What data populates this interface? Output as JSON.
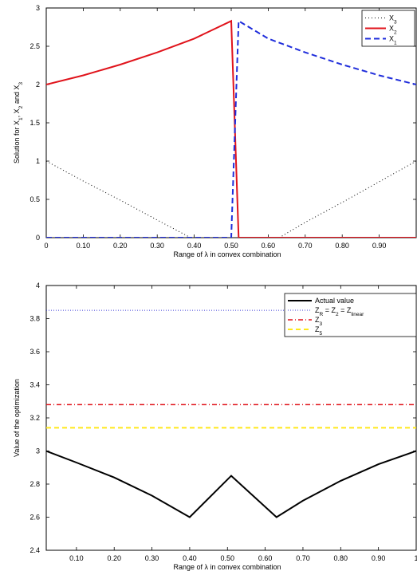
{
  "chart_data": [
    {
      "type": "line",
      "xlabel": "Range of λ in convex combination",
      "ylabel_parts": {
        "a": "Solution for X",
        "a_sub": "1",
        "b": ", X",
        "b_sub": "2",
        "c": " and X",
        "c_sub": "3"
      },
      "xlim": [
        0,
        1
      ],
      "ylim": [
        0,
        3
      ],
      "x_ticks": [
        0,
        0.1,
        0.2,
        0.3,
        0.4,
        0.5,
        0.6,
        0.7,
        0.8,
        0.9
      ],
      "x_tick_labels": [
        "0",
        "0.10",
        "0.20",
        "0.30",
        "0.40",
        "0.50",
        "0.60",
        "0.70",
        "0.80",
        "0.90"
      ],
      "y_ticks": [
        0,
        0.5,
        1,
        1.5,
        2,
        2.5,
        3
      ],
      "y_tick_labels": [
        "0",
        "0.5",
        "1",
        "1.5",
        "2",
        "2.5",
        "3"
      ],
      "legend_position": "top-right",
      "series": [
        {
          "name": "X",
          "sub": "3",
          "color": "#000000",
          "dash": "1,3",
          "width": 1,
          "x": [
            0,
            0.1,
            0.2,
            0.3,
            0.39,
            0.4,
            0.62,
            0.63,
            0.7,
            0.8,
            0.9,
            1.0
          ],
          "y": [
            1.0,
            0.74,
            0.49,
            0.23,
            0.0,
            0.0,
            0.0,
            0.0,
            0.2,
            0.46,
            0.73,
            1.0
          ]
        },
        {
          "name": "X",
          "sub": "2",
          "color": "#e0131b",
          "dash": "",
          "width": 2,
          "x": [
            0,
            0.1,
            0.2,
            0.3,
            0.4,
            0.5,
            0.52,
            0.6,
            0.7,
            0.8,
            0.9,
            1.0
          ],
          "y": [
            2.0,
            2.12,
            2.26,
            2.42,
            2.6,
            2.83,
            0.0,
            0.0,
            0.0,
            0.0,
            0.0,
            0.0
          ]
        },
        {
          "name": "X",
          "sub": "1",
          "color": "#1f2ddb",
          "dash": "7,4",
          "width": 2,
          "x": [
            0,
            0.1,
            0.2,
            0.3,
            0.4,
            0.5,
            0.52,
            0.6,
            0.7,
            0.8,
            0.9,
            1.0
          ],
          "y": [
            0.0,
            0.0,
            0.0,
            0.0,
            0.0,
            0.0,
            2.83,
            2.6,
            2.42,
            2.26,
            2.12,
            2.0
          ]
        }
      ]
    },
    {
      "type": "line",
      "xlabel": "Range of λ in convex combination",
      "ylabel": "Value of the optimization",
      "xlim": [
        0.02,
        1.0
      ],
      "ylim": [
        2.4,
        4.0
      ],
      "x_ticks": [
        0.1,
        0.2,
        0.3,
        0.4,
        0.5,
        0.6,
        0.7,
        0.8,
        0.9,
        1.0
      ],
      "x_tick_labels": [
        "0.10",
        "0.20",
        "0.30",
        "0.40",
        "0.50",
        "0.60",
        "0.70",
        "0.80",
        "0.90",
        "1"
      ],
      "y_ticks": [
        2.4,
        2.6,
        2.8,
        3.0,
        3.2,
        3.4,
        3.6,
        3.8,
        4.0
      ],
      "y_tick_labels": [
        "2.4",
        "2.6",
        "2.8",
        "3",
        "3.2",
        "3.4",
        "3.6",
        "3.8",
        "4"
      ],
      "legend_position": "top-right",
      "series": [
        {
          "name": "Actual value",
          "color": "#000000",
          "dash": "",
          "width": 2,
          "x": [
            0.02,
            0.1,
            0.2,
            0.3,
            0.4,
            0.51,
            0.63,
            0.7,
            0.8,
            0.9,
            1.0
          ],
          "y": [
            3.0,
            2.93,
            2.84,
            2.73,
            2.6,
            2.85,
            2.6,
            2.7,
            2.82,
            2.92,
            3.0
          ]
        },
        {
          "name_parts": [
            "Z",
            "R",
            " = Z",
            "2",
            " = Z",
            "linear"
          ],
          "color": "#3b3bd6",
          "dash": "1,2",
          "width": 1,
          "x": [
            0.02,
            1.0
          ],
          "y": [
            3.85,
            3.85
          ]
        },
        {
          "name": "Z",
          "sub": "3",
          "color": "#e0131b",
          "dash": "6,3,1,3",
          "width": 1.5,
          "x": [
            0.02,
            1.0
          ],
          "y": [
            3.28,
            3.28
          ]
        },
        {
          "name": "Z",
          "sub": "5",
          "color": "#ffe81a",
          "dash": "6,4",
          "width": 2,
          "x": [
            0.02,
            1.0
          ],
          "y": [
            3.14,
            3.14
          ]
        }
      ]
    }
  ]
}
